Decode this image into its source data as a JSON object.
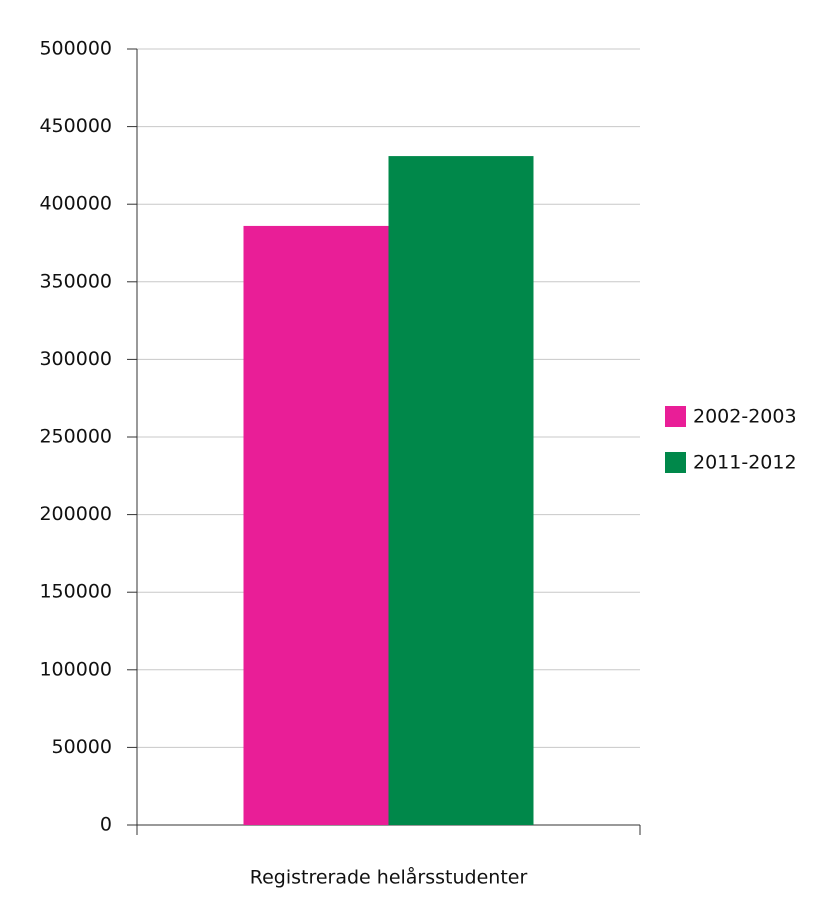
{
  "chart_data": {
    "type": "bar",
    "categories": [
      "Registrerade helårsstudenter"
    ],
    "series": [
      {
        "name": "2002-2003",
        "color": "#e91e97",
        "values": [
          386000
        ]
      },
      {
        "name": "2011-2012",
        "color": "#00884a",
        "values": [
          431000
        ]
      }
    ],
    "ylim": [
      0,
      500000
    ],
    "yticks": [
      0,
      50000,
      100000,
      150000,
      200000,
      250000,
      300000,
      350000,
      400000,
      450000,
      500000
    ],
    "grid": true,
    "legend": "right"
  }
}
